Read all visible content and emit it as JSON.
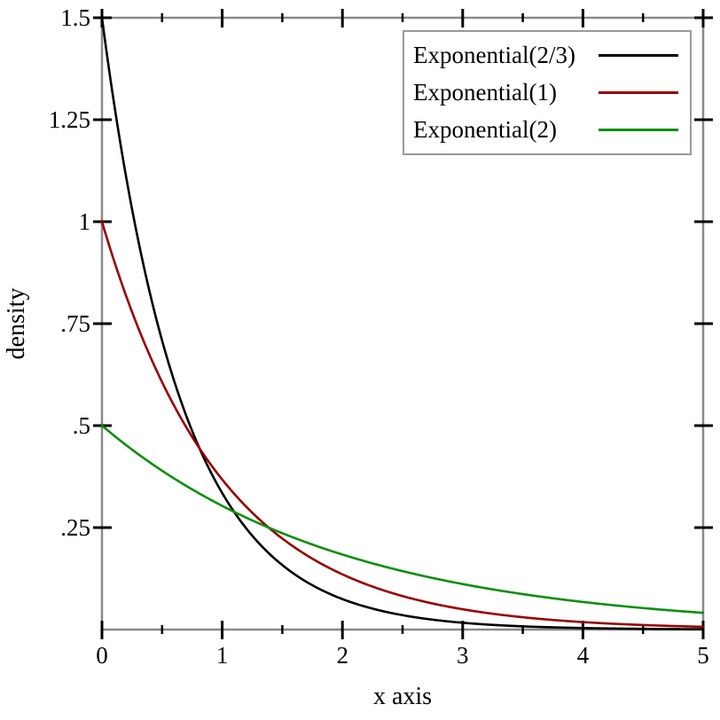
{
  "chart_data": {
    "type": "line",
    "title": "",
    "xlabel": "x axis",
    "ylabel": "density",
    "xlim": [
      0,
      5
    ],
    "ylim": [
      0,
      1.5
    ],
    "grid": false,
    "axis_color": "#898989",
    "tick_color": "#000000",
    "legend_position": "top-right",
    "x_major_ticks": [
      {
        "value": 0,
        "label": "0"
      },
      {
        "value": 1,
        "label": "1"
      },
      {
        "value": 2,
        "label": "2"
      },
      {
        "value": 3,
        "label": "3"
      },
      {
        "value": 4,
        "label": "4"
      },
      {
        "value": 5,
        "label": "5"
      }
    ],
    "x_minor_ticks": [
      0.5,
      1.5,
      2.5,
      3.5,
      4.5
    ],
    "y_major_ticks": [
      {
        "value": 0.25,
        "label": ".25"
      },
      {
        "value": 0.5,
        "label": ".5"
      },
      {
        "value": 0.75,
        "label": ".75"
      },
      {
        "value": 1,
        "label": "1"
      },
      {
        "value": 1.25,
        "label": "1.25"
      },
      {
        "value": 1.5,
        "label": "1.5"
      }
    ],
    "x_samples": [
      0,
      0.25,
      0.5,
      0.75,
      1,
      1.25,
      1.5,
      1.75,
      2,
      2.25,
      2.5,
      2.75,
      3,
      3.25,
      3.5,
      3.75,
      4,
      4.25,
      4.5,
      4.75,
      5
    ],
    "series": [
      {
        "name": "Exponential(2/3)",
        "color": "#000000",
        "rate": 1.5,
        "values": [
          1.5,
          1.0309,
          0.7086,
          0.487,
          0.3347,
          0.23,
          0.1581,
          0.1087,
          0.0747,
          0.0513,
          0.0353,
          0.0242,
          0.0167,
          0.0115,
          0.0079,
          0.0054,
          0.0037,
          0.0026,
          0.0018,
          0.0012,
          0.0008
        ]
      },
      {
        "name": "Exponential(1)",
        "color": "#980000",
        "rate": 1,
        "values": [
          1,
          0.7788,
          0.6065,
          0.4724,
          0.3679,
          0.2865,
          0.2231,
          0.1738,
          0.1353,
          0.1054,
          0.0821,
          0.0639,
          0.0498,
          0.0388,
          0.0302,
          0.0235,
          0.0183,
          0.0143,
          0.0111,
          0.0087,
          0.0067
        ]
      },
      {
        "name": "Exponential(2)",
        "color": "#0a8f0a",
        "rate": 0.5,
        "values": [
          0.5,
          0.4412,
          0.3894,
          0.3436,
          0.3033,
          0.2676,
          0.2362,
          0.2084,
          0.1839,
          0.1623,
          0.1433,
          0.1264,
          0.1116,
          0.0985,
          0.0869,
          0.0767,
          0.0677,
          0.0597,
          0.0527,
          0.0465,
          0.041
        ]
      }
    ]
  }
}
